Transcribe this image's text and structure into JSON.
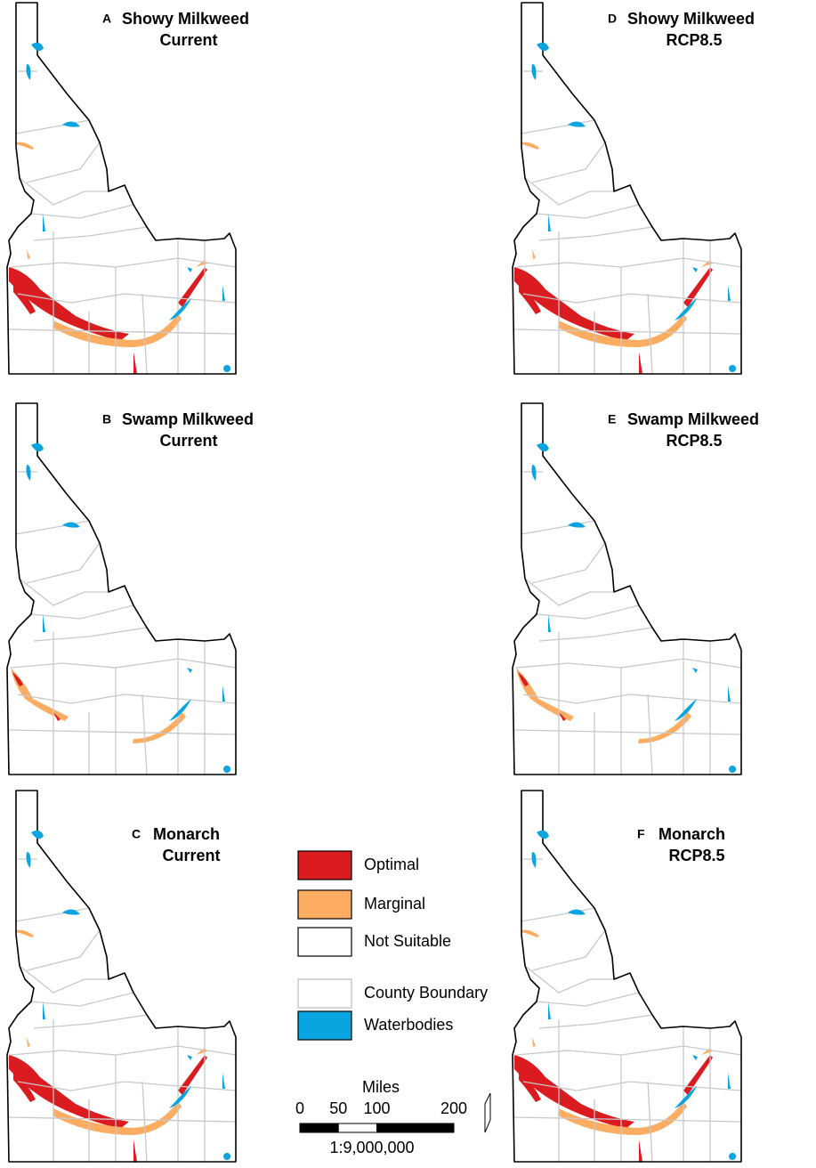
{
  "panels": [
    {
      "letter": "A",
      "title": "Showy Milkweed",
      "subtitle": "Current"
    },
    {
      "letter": "B",
      "title": "Swamp Milkweed",
      "subtitle": "Current"
    },
    {
      "letter": "C",
      "title": "Monarch",
      "subtitle": "Current"
    },
    {
      "letter": "D",
      "title": "Showy Milkweed",
      "subtitle": "RCP8.5"
    },
    {
      "letter": "E",
      "title": "Swamp Milkweed",
      "subtitle": "RCP8.5"
    },
    {
      "letter": "F",
      "title": "Monarch",
      "subtitle": "RCP8.5"
    }
  ],
  "legend": {
    "items": [
      {
        "label": "Optimal",
        "color": "#da1c20"
      },
      {
        "label": "Marginal",
        "color": "#fdad62"
      },
      {
        "label": "Not Suitable",
        "color": "#ffffff"
      },
      {
        "label": "County Boundary",
        "color": "#c8c8c8"
      },
      {
        "label": "Waterbodies",
        "color": "#0aa5e0"
      }
    ]
  },
  "scale_bar": {
    "title": "Miles",
    "ticks": [
      0,
      50,
      100,
      200
    ],
    "ratio": "1:9,000,000"
  }
}
